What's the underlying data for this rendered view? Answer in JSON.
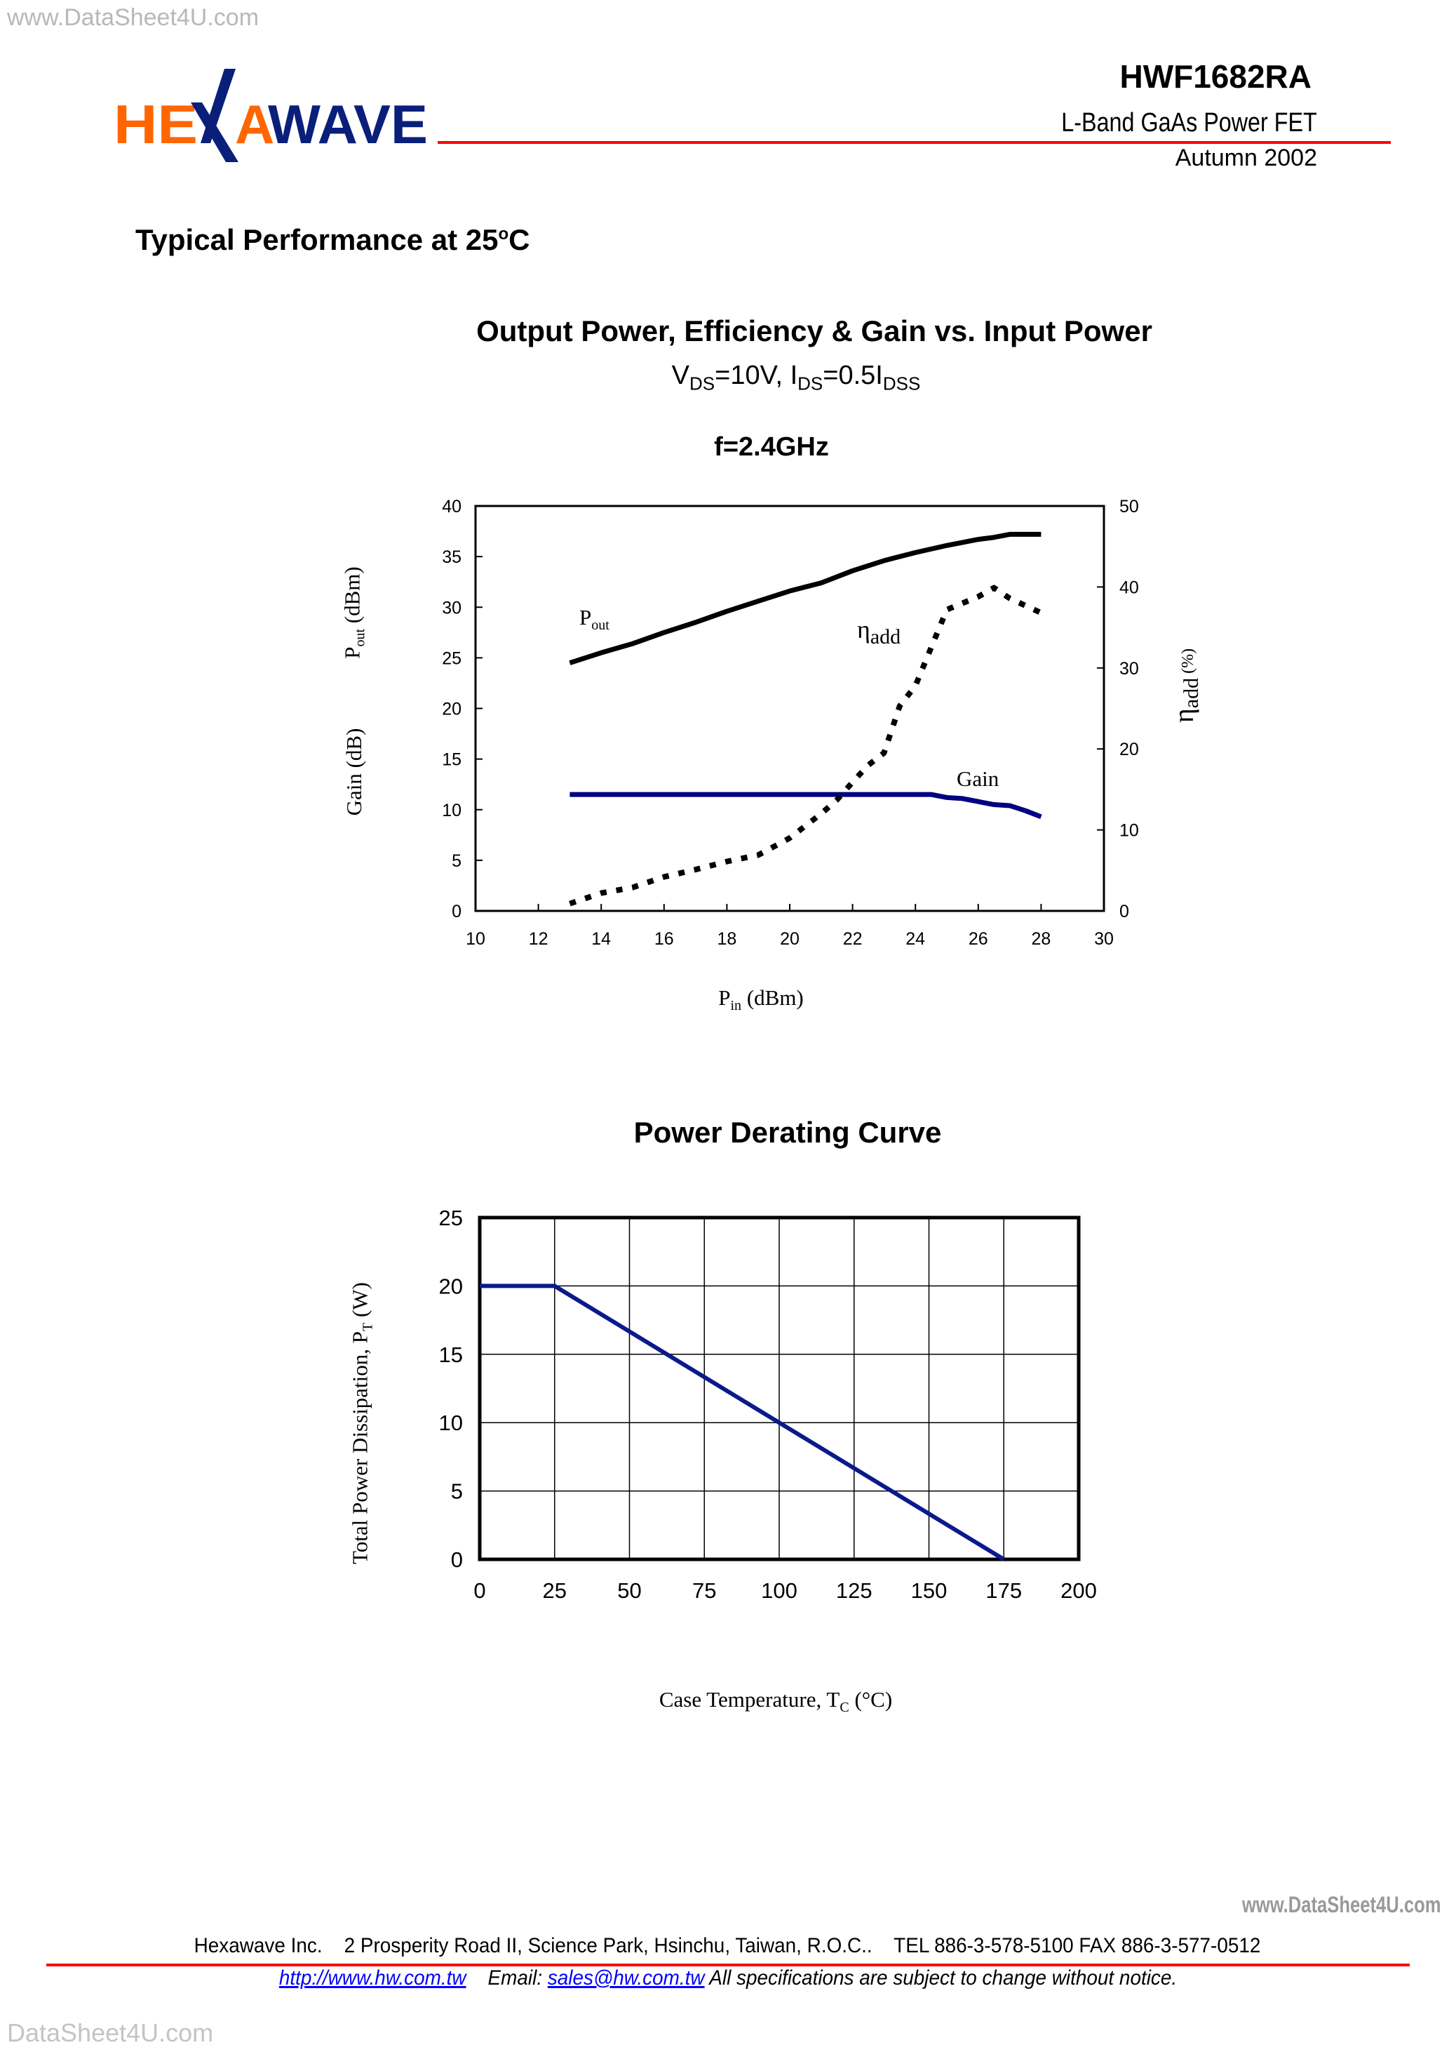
{
  "watermarks": {
    "top_left": "www.DataSheet4U.com",
    "footer_right": "www.DataSheet4U.com",
    "bottom_left": "DataSheet4U.com"
  },
  "header": {
    "logo_text": "HEXAWAVE",
    "part_number": "HWF1682RA",
    "product": "L-Band GaAs Power FET",
    "date": "Autumn 2002",
    "colors": {
      "logo_orange": "#ff6600",
      "logo_navy": "#0a1f7a",
      "rule": "#ff0000"
    }
  },
  "section_title": "Typical Performance at 25",
  "section_title_unit": "o",
  "section_title_end": "C",
  "footer": {
    "address": "Hexawave Inc.    2 Prosperity Road II, Science Park, Hsinchu, Taiwan, R.O.C..    TEL 886-3-578-5100 FAX 886-3-577-0512",
    "website": "http://www.hw.com.tw",
    "email_label": "Email:",
    "email": "sales@hw.com.tw",
    "notice": "All specifications are subject to change without notice."
  },
  "chart_data": [
    {
      "type": "line",
      "title": "Output Power, Efficiency & Gain vs. Input Power",
      "subtitle": {
        "v": "V",
        "v_sub": "DS",
        "v_val": "=10V, I",
        "i_sub": "DS",
        "i_val": "=0.5I",
        "i2_sub": "DSS"
      },
      "condition": "f=2.4GHz",
      "xlabel": {
        "main": "P",
        "sub": "in",
        "unit": " (dBm)"
      },
      "ylabel_left": [
        {
          "main": "P",
          "sub": "out",
          "unit": " (dBm)"
        },
        {
          "main": "Gain (dB)"
        }
      ],
      "ylabel_right": {
        "main": "η",
        "sub": "add",
        "unit": " (%)"
      },
      "xlim": [
        10,
        30
      ],
      "ylim_left": [
        0,
        40
      ],
      "ylim_right": [
        0,
        50
      ],
      "x_ticks": [
        "10",
        "12",
        "14",
        "16",
        "18",
        "20",
        "22",
        "24",
        "26",
        "28",
        "30"
      ],
      "y_ticks_left": [
        "0",
        "5",
        "10",
        "15",
        "20",
        "25",
        "30",
        "35",
        "40"
      ],
      "y_ticks_right": [
        "0",
        "10",
        "20",
        "30",
        "40",
        "50"
      ],
      "grid": false,
      "annotations": {
        "pout": {
          "main": "P",
          "sub": "out"
        },
        "eta": {
          "main": "η",
          "sub": "add"
        },
        "gain": "Gain"
      },
      "series": [
        {
          "name": "Pout",
          "axis": "left",
          "style": "solid",
          "color": "#000000",
          "x": [
            13,
            14,
            15,
            16,
            17,
            18,
            19,
            20,
            21,
            22,
            23,
            24,
            25,
            26,
            26.5,
            27,
            28
          ],
          "y": [
            24.5,
            25.5,
            26.4,
            27.5,
            28.5,
            29.6,
            30.6,
            31.6,
            32.4,
            33.6,
            34.6,
            35.4,
            36.1,
            36.7,
            36.9,
            37.2,
            37.2
          ]
        },
        {
          "name": "Gain",
          "axis": "left",
          "style": "solid",
          "color": "#000080",
          "x": [
            13,
            24.5,
            25,
            25.5,
            26,
            26.5,
            27,
            27.5,
            28
          ],
          "y": [
            11.5,
            11.5,
            11.2,
            11.1,
            10.8,
            10.5,
            10.4,
            9.9,
            9.3
          ]
        },
        {
          "name": "ηadd",
          "axis": "right",
          "style": "dotted",
          "color": "#000000",
          "x": [
            13,
            14,
            15,
            16,
            17,
            18,
            19,
            20,
            21,
            21.5,
            22,
            22.5,
            23,
            23.5,
            24,
            24.5,
            25,
            26,
            26.5,
            27,
            27.5,
            28
          ],
          "y": [
            0.9,
            2.2,
            2.9,
            4.2,
            5.1,
            6.1,
            6.9,
            9.0,
            12.0,
            13.7,
            15.9,
            18.0,
            19.5,
            25.3,
            27.8,
            32.5,
            37.2,
            38.8,
            39.9,
            38.6,
            37.7,
            36.8
          ]
        }
      ]
    },
    {
      "type": "line",
      "title": "Power Derating Curve",
      "xlabel": {
        "main": "Case Temperature, T",
        "sub": "C",
        "unit": " (°C)"
      },
      "ylabel": {
        "main": "Total Power Dissipation, P",
        "sub": "T",
        "unit": "  (W)"
      },
      "xlim": [
        0,
        200
      ],
      "ylim": [
        0,
        25
      ],
      "x_ticks": [
        "0",
        "25",
        "50",
        "75",
        "100",
        "125",
        "150",
        "175",
        "200"
      ],
      "y_ticks": [
        "0",
        "5",
        "10",
        "15",
        "20",
        "25"
      ],
      "grid": true,
      "series": [
        {
          "color": "#0a1a8c",
          "x": [
            0,
            25,
            175
          ],
          "y": [
            20,
            20,
            0
          ]
        }
      ]
    }
  ]
}
